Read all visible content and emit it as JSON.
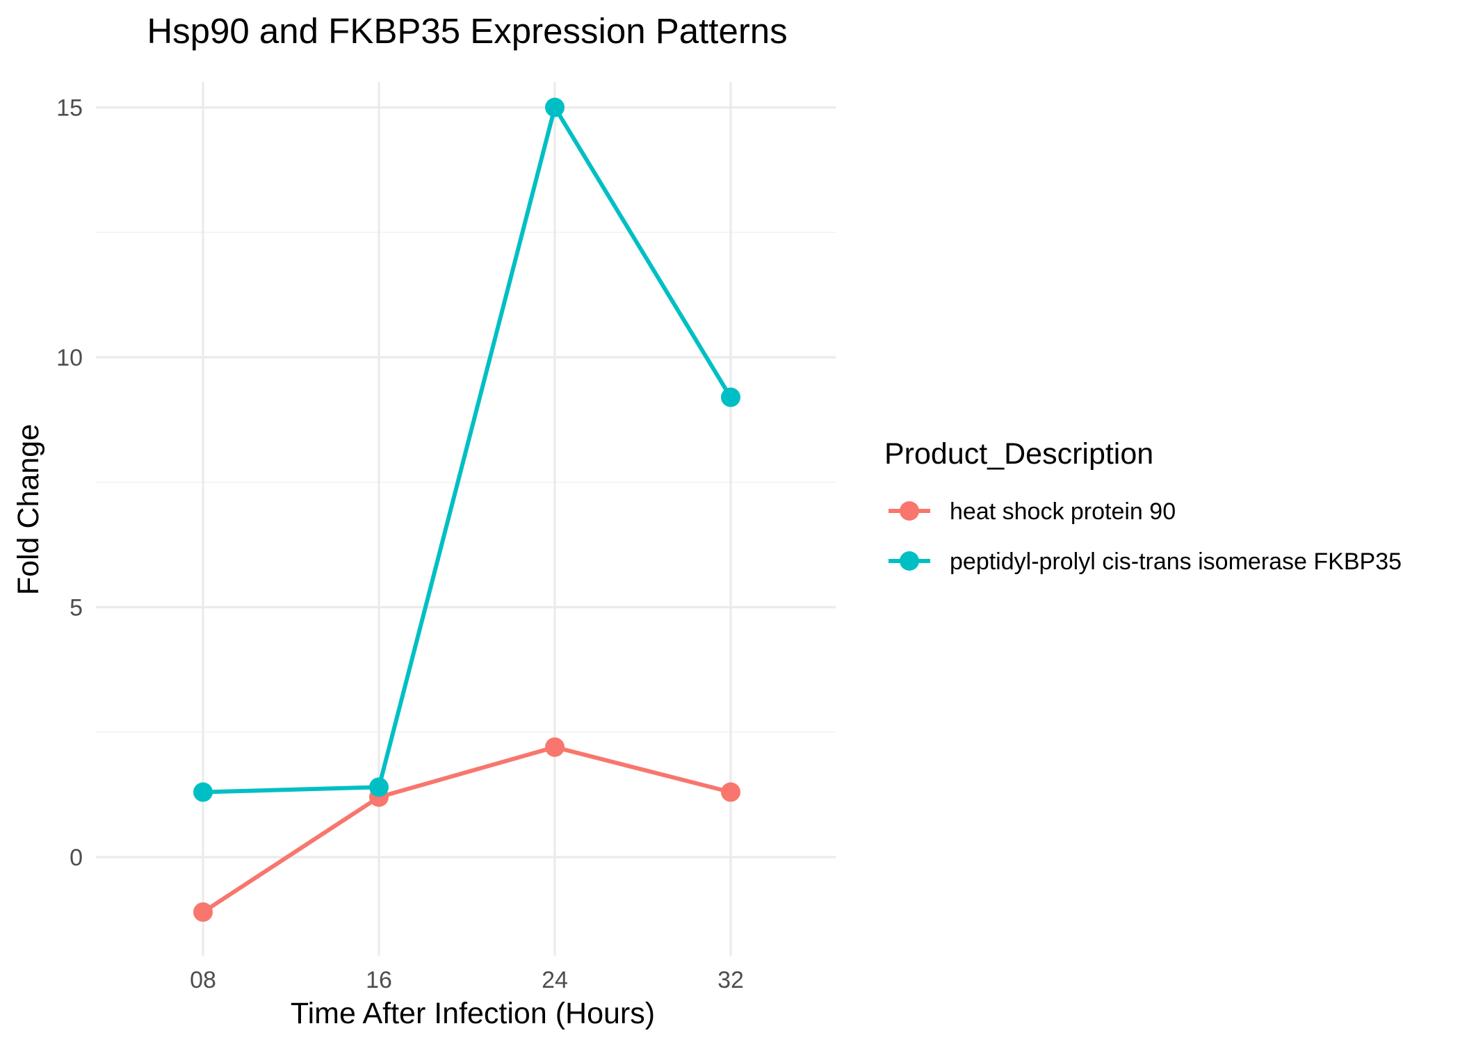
{
  "chart_data": {
    "type": "line",
    "title": "Hsp90 and FKBP35 Expression Patterns",
    "xlabel": "Time After Infection (Hours)",
    "ylabel": "Fold Change",
    "categories": [
      "08",
      "16",
      "24",
      "32"
    ],
    "ylim": [
      -1.9,
      15.8
    ],
    "yticks": [
      0,
      5,
      10,
      15
    ],
    "yminor": [
      2.5,
      7.5,
      12.5
    ],
    "grid": true,
    "legend": {
      "title": "Product_Description",
      "position": "right"
    },
    "series": [
      {
        "name": "heat shock protein 90",
        "color": "#F8766D",
        "values": [
          -1.1,
          1.2,
          2.2,
          1.3
        ]
      },
      {
        "name": "peptidyl-prolyl cis-trans isomerase FKBP35",
        "color": "#00BFC4",
        "values": [
          1.3,
          1.4,
          15.0,
          9.2
        ]
      }
    ]
  }
}
